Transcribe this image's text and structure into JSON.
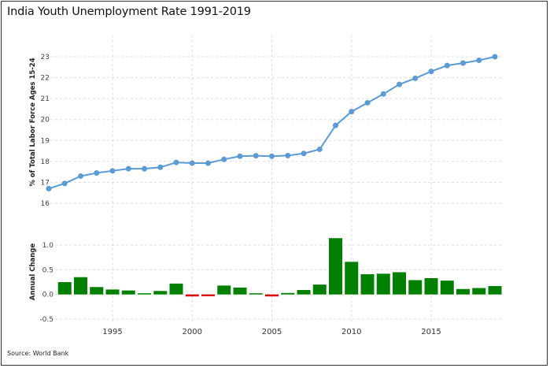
{
  "title": "India Youth Unemployment Rate 1991-2019",
  "source": "Source: World Bank",
  "colors": {
    "line": "#5b9bd5",
    "positive_bar": "#008000",
    "negative_bar": "#dd0000",
    "grid": "#dddddd"
  },
  "chart_data": [
    {
      "type": "line",
      "title": "India Youth Unemployment Rate 1991-2019",
      "ylabel": "% of Total Labor Force Ages 15-24",
      "xlabel": "",
      "x": [
        1991,
        1992,
        1993,
        1994,
        1995,
        1996,
        1997,
        1998,
        1999,
        2000,
        2001,
        2002,
        2003,
        2004,
        2005,
        2006,
        2007,
        2008,
        2009,
        2010,
        2011,
        2012,
        2013,
        2014,
        2015,
        2016,
        2017,
        2018,
        2019
      ],
      "series": [
        {
          "values": [
            16.7,
            16.95,
            17.3,
            17.45,
            17.55,
            17.65,
            17.65,
            17.72,
            17.95,
            17.92,
            17.92,
            18.1,
            18.25,
            18.27,
            18.25,
            18.28,
            18.38,
            18.58,
            19.72,
            20.38,
            20.8,
            21.22,
            21.68,
            21.97,
            22.3,
            22.58,
            22.7,
            22.83,
            23.0
          ]
        }
      ],
      "ylim": [
        16,
        23.5
      ],
      "yticks": [
        "16",
        "17",
        "18",
        "19",
        "20",
        "21",
        "22",
        "23"
      ],
      "grid": true
    },
    {
      "type": "bar",
      "ylabel": "Annual Change",
      "x": [
        1992,
        1993,
        1994,
        1995,
        1996,
        1997,
        1998,
        1999,
        2000,
        2001,
        2002,
        2003,
        2004,
        2005,
        2006,
        2007,
        2008,
        2009,
        2010,
        2011,
        2012,
        2013,
        2014,
        2015,
        2016,
        2017,
        2018,
        2019
      ],
      "values": [
        0.25,
        0.35,
        0.15,
        0.1,
        0.08,
        0.01,
        0.07,
        0.22,
        -0.04,
        -0.01,
        0.18,
        0.14,
        0.02,
        -0.04,
        0.03,
        0.09,
        0.2,
        1.14,
        0.66,
        0.41,
        0.42,
        0.45,
        0.29,
        0.33,
        0.28,
        0.11,
        0.13,
        0.17
      ],
      "ylim": [
        -0.55,
        1.2
      ],
      "yticks": [
        "-0.5",
        "0.0",
        "0.5",
        "1.0"
      ],
      "grid": true
    }
  ],
  "x_tick_labels": [
    "1995",
    "2000",
    "2005",
    "2010",
    "2015"
  ]
}
